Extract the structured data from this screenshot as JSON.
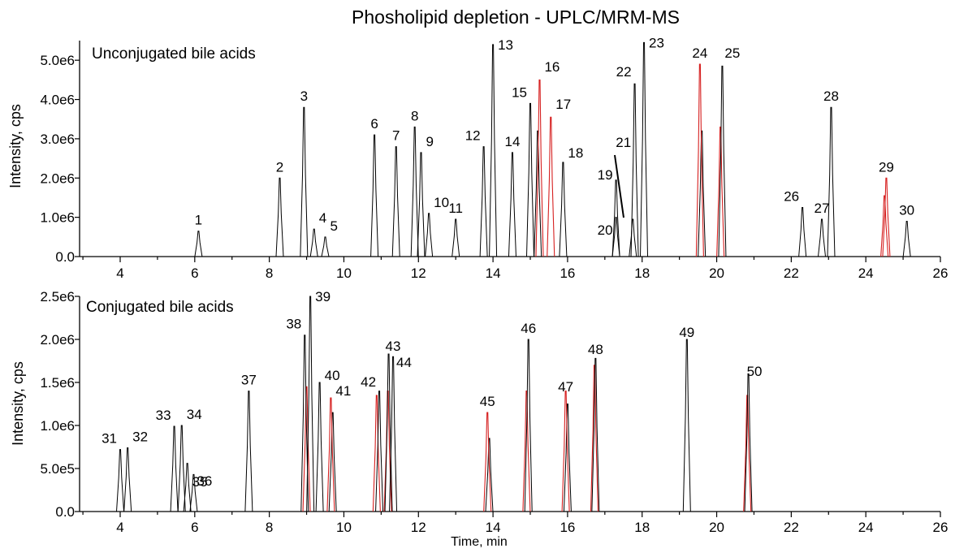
{
  "colors": {
    "black_trace": "#000000",
    "red_trace": "#d62020"
  },
  "chart_data": {
    "type": "line",
    "title": "Phosholipid depletion - UPLC/MRM-MS",
    "xlabel": "Time, min",
    "panels": [
      {
        "id": "top",
        "title": "Unconjugated bile acids",
        "ylabel": "Intensity, cps",
        "xlim": [
          3,
          26
        ],
        "ylim": [
          0,
          5500000.0
        ],
        "xticks": [
          "4",
          "6",
          "8",
          "10",
          "12",
          "14",
          "16",
          "18",
          "20",
          "22",
          "24",
          "26"
        ],
        "yticks": [
          {
            "label": "0.0",
            "value": 0
          },
          {
            "label": "1.0e6",
            "value": 1000000
          },
          {
            "label": "2.0e6",
            "value": 2000000
          },
          {
            "label": "3.0e6",
            "value": 3000000
          },
          {
            "label": "4.0e6",
            "value": 4000000
          },
          {
            "label": "5.0e6",
            "value": 5000000
          }
        ],
        "peaks": [
          {
            "label": "1",
            "x": 6.1,
            "y": 650000,
            "color": "black"
          },
          {
            "label": "2",
            "x": 8.28,
            "y": 2000000,
            "color": "black"
          },
          {
            "label": "3",
            "x": 8.93,
            "y": 3800000,
            "color": "black"
          },
          {
            "label": "4",
            "x": 9.2,
            "y": 700000,
            "color": "black"
          },
          {
            "label": "5",
            "x": 9.5,
            "y": 500000,
            "color": "black"
          },
          {
            "label": "6",
            "x": 10.82,
            "y": 3100000,
            "color": "black"
          },
          {
            "label": "7",
            "x": 11.4,
            "y": 2800000,
            "color": "black"
          },
          {
            "label": "8",
            "x": 11.9,
            "y": 3300000,
            "color": "black"
          },
          {
            "label": "9",
            "x": 12.07,
            "y": 2650000,
            "color": "black"
          },
          {
            "label": "10",
            "x": 12.28,
            "y": 1100000,
            "color": "black"
          },
          {
            "label": "11",
            "x": 13.0,
            "y": 950000,
            "color": "black"
          },
          {
            "label": "12",
            "x": 13.75,
            "y": 2800000,
            "color": "black"
          },
          {
            "label": "13",
            "x": 14.0,
            "y": 5400000,
            "color": "black"
          },
          {
            "label": "14",
            "x": 14.52,
            "y": 2650000,
            "color": "black"
          },
          {
            "label": "15",
            "x": 15.0,
            "y": 3900000,
            "color": "black"
          },
          {
            "label": "16",
            "x": 15.25,
            "y": 4500000,
            "color": "red"
          },
          {
            "label": "17",
            "x": 15.55,
            "y": 3550000,
            "color": "red"
          },
          {
            "label": "18",
            "x": 15.88,
            "y": 2400000,
            "color": "black"
          },
          {
            "label": "19",
            "x": 17.3,
            "y": 1950000,
            "color": "black"
          },
          {
            "label": "20",
            "x": 17.3,
            "y": 1000000,
            "color": "black"
          },
          {
            "label": "21",
            "x": 17.75,
            "y": 950000,
            "color": "black"
          },
          {
            "label": "22",
            "x": 17.8,
            "y": 4400000,
            "color": "black"
          },
          {
            "label": "23",
            "x": 18.05,
            "y": 5450000,
            "color": "black"
          },
          {
            "label": "24",
            "x": 19.55,
            "y": 4900000,
            "color": "red"
          },
          {
            "label": "25",
            "x": 20.15,
            "y": 4850000,
            "color": "black"
          },
          {
            "label": "26",
            "x": 22.3,
            "y": 1250000,
            "color": "black"
          },
          {
            "label": "27",
            "x": 22.82,
            "y": 950000,
            "color": "black"
          },
          {
            "label": "28",
            "x": 23.07,
            "y": 3800000,
            "color": "black"
          },
          {
            "label": "29",
            "x": 24.55,
            "y": 2000000,
            "color": "red"
          },
          {
            "label": "30",
            "x": 25.1,
            "y": 900000,
            "color": "black"
          }
        ],
        "overlays": [
          {
            "x": 15.2,
            "y": 3200000,
            "color": "black"
          },
          {
            "x": 19.6,
            "y": 3200000,
            "color": "black"
          },
          {
            "x": 20.1,
            "y": 3300000,
            "color": "red"
          },
          {
            "x": 24.5,
            "y": 1550000,
            "color": "red"
          }
        ]
      },
      {
        "id": "bottom",
        "title": "Conjugated bile acids",
        "ylabel": "Intensity, cps",
        "xlim": [
          3,
          26
        ],
        "ylim": [
          0,
          2500000.0
        ],
        "xticks": [
          "4",
          "6",
          "8",
          "10",
          "12",
          "14",
          "16",
          "18",
          "20",
          "22",
          "24",
          "26"
        ],
        "yticks": [
          {
            "label": "0.0",
            "value": 0
          },
          {
            "label": "5.0e5",
            "value": 500000
          },
          {
            "label": "1.0e6",
            "value": 1000000
          },
          {
            "label": "1.5e6",
            "value": 1500000
          },
          {
            "label": "2.0e6",
            "value": 2000000
          },
          {
            "label": "2.5e6",
            "value": 2500000
          }
        ],
        "peaks": [
          {
            "label": "31",
            "x": 4.0,
            "y": 720000,
            "color": "black"
          },
          {
            "label": "32",
            "x": 4.2,
            "y": 740000,
            "color": "black"
          },
          {
            "label": "33",
            "x": 5.45,
            "y": 990000,
            "color": "black"
          },
          {
            "label": "34",
            "x": 5.65,
            "y": 1000000,
            "color": "black"
          },
          {
            "label": "35",
            "x": 5.8,
            "y": 560000,
            "color": "black"
          },
          {
            "label": "36",
            "x": 5.97,
            "y": 430000,
            "color": "black"
          },
          {
            "label": "37",
            "x": 7.45,
            "y": 1400000,
            "color": "black"
          },
          {
            "label": "38",
            "x": 8.95,
            "y": 2050000,
            "color": "black"
          },
          {
            "label": "39",
            "x": 9.1,
            "y": 2500000,
            "color": "black"
          },
          {
            "label": "40",
            "x": 9.35,
            "y": 1500000,
            "color": "black"
          },
          {
            "label": "41",
            "x": 9.65,
            "y": 1320000,
            "color": "red"
          },
          {
            "label": "42",
            "x": 10.95,
            "y": 1400000,
            "color": "black"
          },
          {
            "label": "43",
            "x": 11.2,
            "y": 1830000,
            "color": "black"
          },
          {
            "label": "44",
            "x": 11.32,
            "y": 1800000,
            "color": "black"
          },
          {
            "label": "45",
            "x": 13.85,
            "y": 1150000,
            "color": "red"
          },
          {
            "label": "46",
            "x": 14.95,
            "y": 2000000,
            "color": "black"
          },
          {
            "label": "47",
            "x": 15.95,
            "y": 1400000,
            "color": "red"
          },
          {
            "label": "48",
            "x": 16.75,
            "y": 1780000,
            "color": "black"
          },
          {
            "label": "49",
            "x": 19.2,
            "y": 2000000,
            "color": "black"
          },
          {
            "label": "50",
            "x": 20.85,
            "y": 1600000,
            "color": "black"
          }
        ],
        "overlays": [
          {
            "x": 9.0,
            "y": 1450000,
            "color": "red"
          },
          {
            "x": 9.7,
            "y": 1150000,
            "color": "black"
          },
          {
            "x": 10.88,
            "y": 1350000,
            "color": "red"
          },
          {
            "x": 11.18,
            "y": 1400000,
            "color": "red"
          },
          {
            "x": 13.9,
            "y": 850000,
            "color": "black"
          },
          {
            "x": 14.9,
            "y": 1400000,
            "color": "red"
          },
          {
            "x": 16.0,
            "y": 1250000,
            "color": "black"
          },
          {
            "x": 16.72,
            "y": 1700000,
            "color": "red"
          },
          {
            "x": 20.82,
            "y": 1350000,
            "color": "red"
          }
        ]
      }
    ]
  }
}
